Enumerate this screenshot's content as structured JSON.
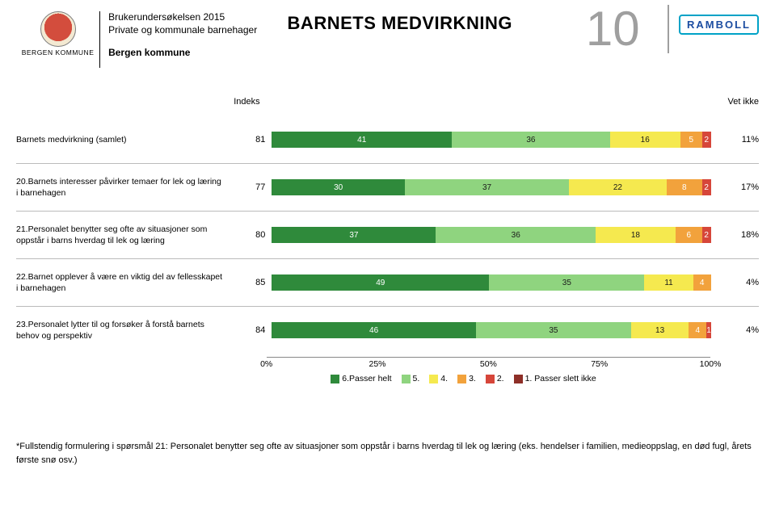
{
  "header": {
    "logo_label": "BERGEN KOMMUNE",
    "survey_title": "Brukerundersøkelsen 2015",
    "survey_subtitle": "Private og kommunale barnehager",
    "municipality": "Bergen kommune",
    "page_title": "BARNETS MEDVIRKNING",
    "page_number": "10",
    "brand": "RAMBOLL"
  },
  "colors": {
    "seg6": "#2f8a3b",
    "seg5": "#8fd47f",
    "seg4": "#f5e94f",
    "seg3": "#f2a23c",
    "seg2": "#d6463a",
    "seg1": "#8e2f28",
    "grid": "#888888",
    "text": "#000000",
    "bg": "#ffffff"
  },
  "columns": {
    "index": "Indeks",
    "vet_ikke": "Vet ikke"
  },
  "rows": [
    {
      "label": "Barnets medvirkning (samlet)",
      "index": "81",
      "segments": [
        {
          "v": 41,
          "c": "seg6"
        },
        {
          "v": 36,
          "c": "seg5"
        },
        {
          "v": 16,
          "c": "seg4"
        },
        {
          "v": 5,
          "c": "seg3"
        },
        {
          "v": 2,
          "c": "seg2"
        }
      ],
      "vet_ikke": "11%"
    },
    {
      "label": "20.Barnets interesser påvirker temaer for lek og læring i barnehagen",
      "index": "77",
      "segments": [
        {
          "v": 30,
          "c": "seg6"
        },
        {
          "v": 37,
          "c": "seg5"
        },
        {
          "v": 22,
          "c": "seg4"
        },
        {
          "v": 8,
          "c": "seg3"
        },
        {
          "v": 2,
          "c": "seg2"
        }
      ],
      "vet_ikke": "17%"
    },
    {
      "label": "21.Personalet benytter seg ofte av situasjoner som oppstår i barns hverdag til lek og læring",
      "index": "80",
      "segments": [
        {
          "v": 37,
          "c": "seg6"
        },
        {
          "v": 36,
          "c": "seg5"
        },
        {
          "v": 18,
          "c": "seg4"
        },
        {
          "v": 6,
          "c": "seg3"
        },
        {
          "v": 2,
          "c": "seg2"
        }
      ],
      "vet_ikke": "18%"
    },
    {
      "label": "22.Barnet opplever å være en viktig del av fellesskapet i barnehagen",
      "index": "85",
      "segments": [
        {
          "v": 49,
          "c": "seg6"
        },
        {
          "v": 35,
          "c": "seg5"
        },
        {
          "v": 11,
          "c": "seg4"
        },
        {
          "v": 4,
          "c": "seg3"
        }
      ],
      "vet_ikke": "4%"
    },
    {
      "label": "23.Personalet lytter til og forsøker å forstå barnets behov og perspektiv",
      "index": "84",
      "segments": [
        {
          "v": 46,
          "c": "seg6"
        },
        {
          "v": 35,
          "c": "seg5"
        },
        {
          "v": 13,
          "c": "seg4"
        },
        {
          "v": 4,
          "c": "seg3"
        },
        {
          "v": 1,
          "c": "seg2"
        }
      ],
      "vet_ikke": "4%"
    }
  ],
  "axis": {
    "ticks": [
      {
        "pct": 0,
        "label": "0%"
      },
      {
        "pct": 25,
        "label": "25%"
      },
      {
        "pct": 50,
        "label": "50%"
      },
      {
        "pct": 75,
        "label": "75%"
      },
      {
        "pct": 100,
        "label": "100%"
      }
    ]
  },
  "legend": [
    {
      "c": "seg6",
      "label": "6.Passer helt"
    },
    {
      "c": "seg5",
      "label": "5."
    },
    {
      "c": "seg4",
      "label": "4."
    },
    {
      "c": "seg3",
      "label": "3."
    },
    {
      "c": "seg2",
      "label": "2."
    },
    {
      "c": "seg1",
      "label": "1. Passer slett ikke"
    }
  ],
  "footnote": "*Fullstendig formulering i spørsmål 21: Personalet benytter seg ofte av situasjoner som oppstår i barns hverdag til lek og læring (eks. hendelser i familien, medieoppslag, en død fugl, årets første snø osv.)"
}
